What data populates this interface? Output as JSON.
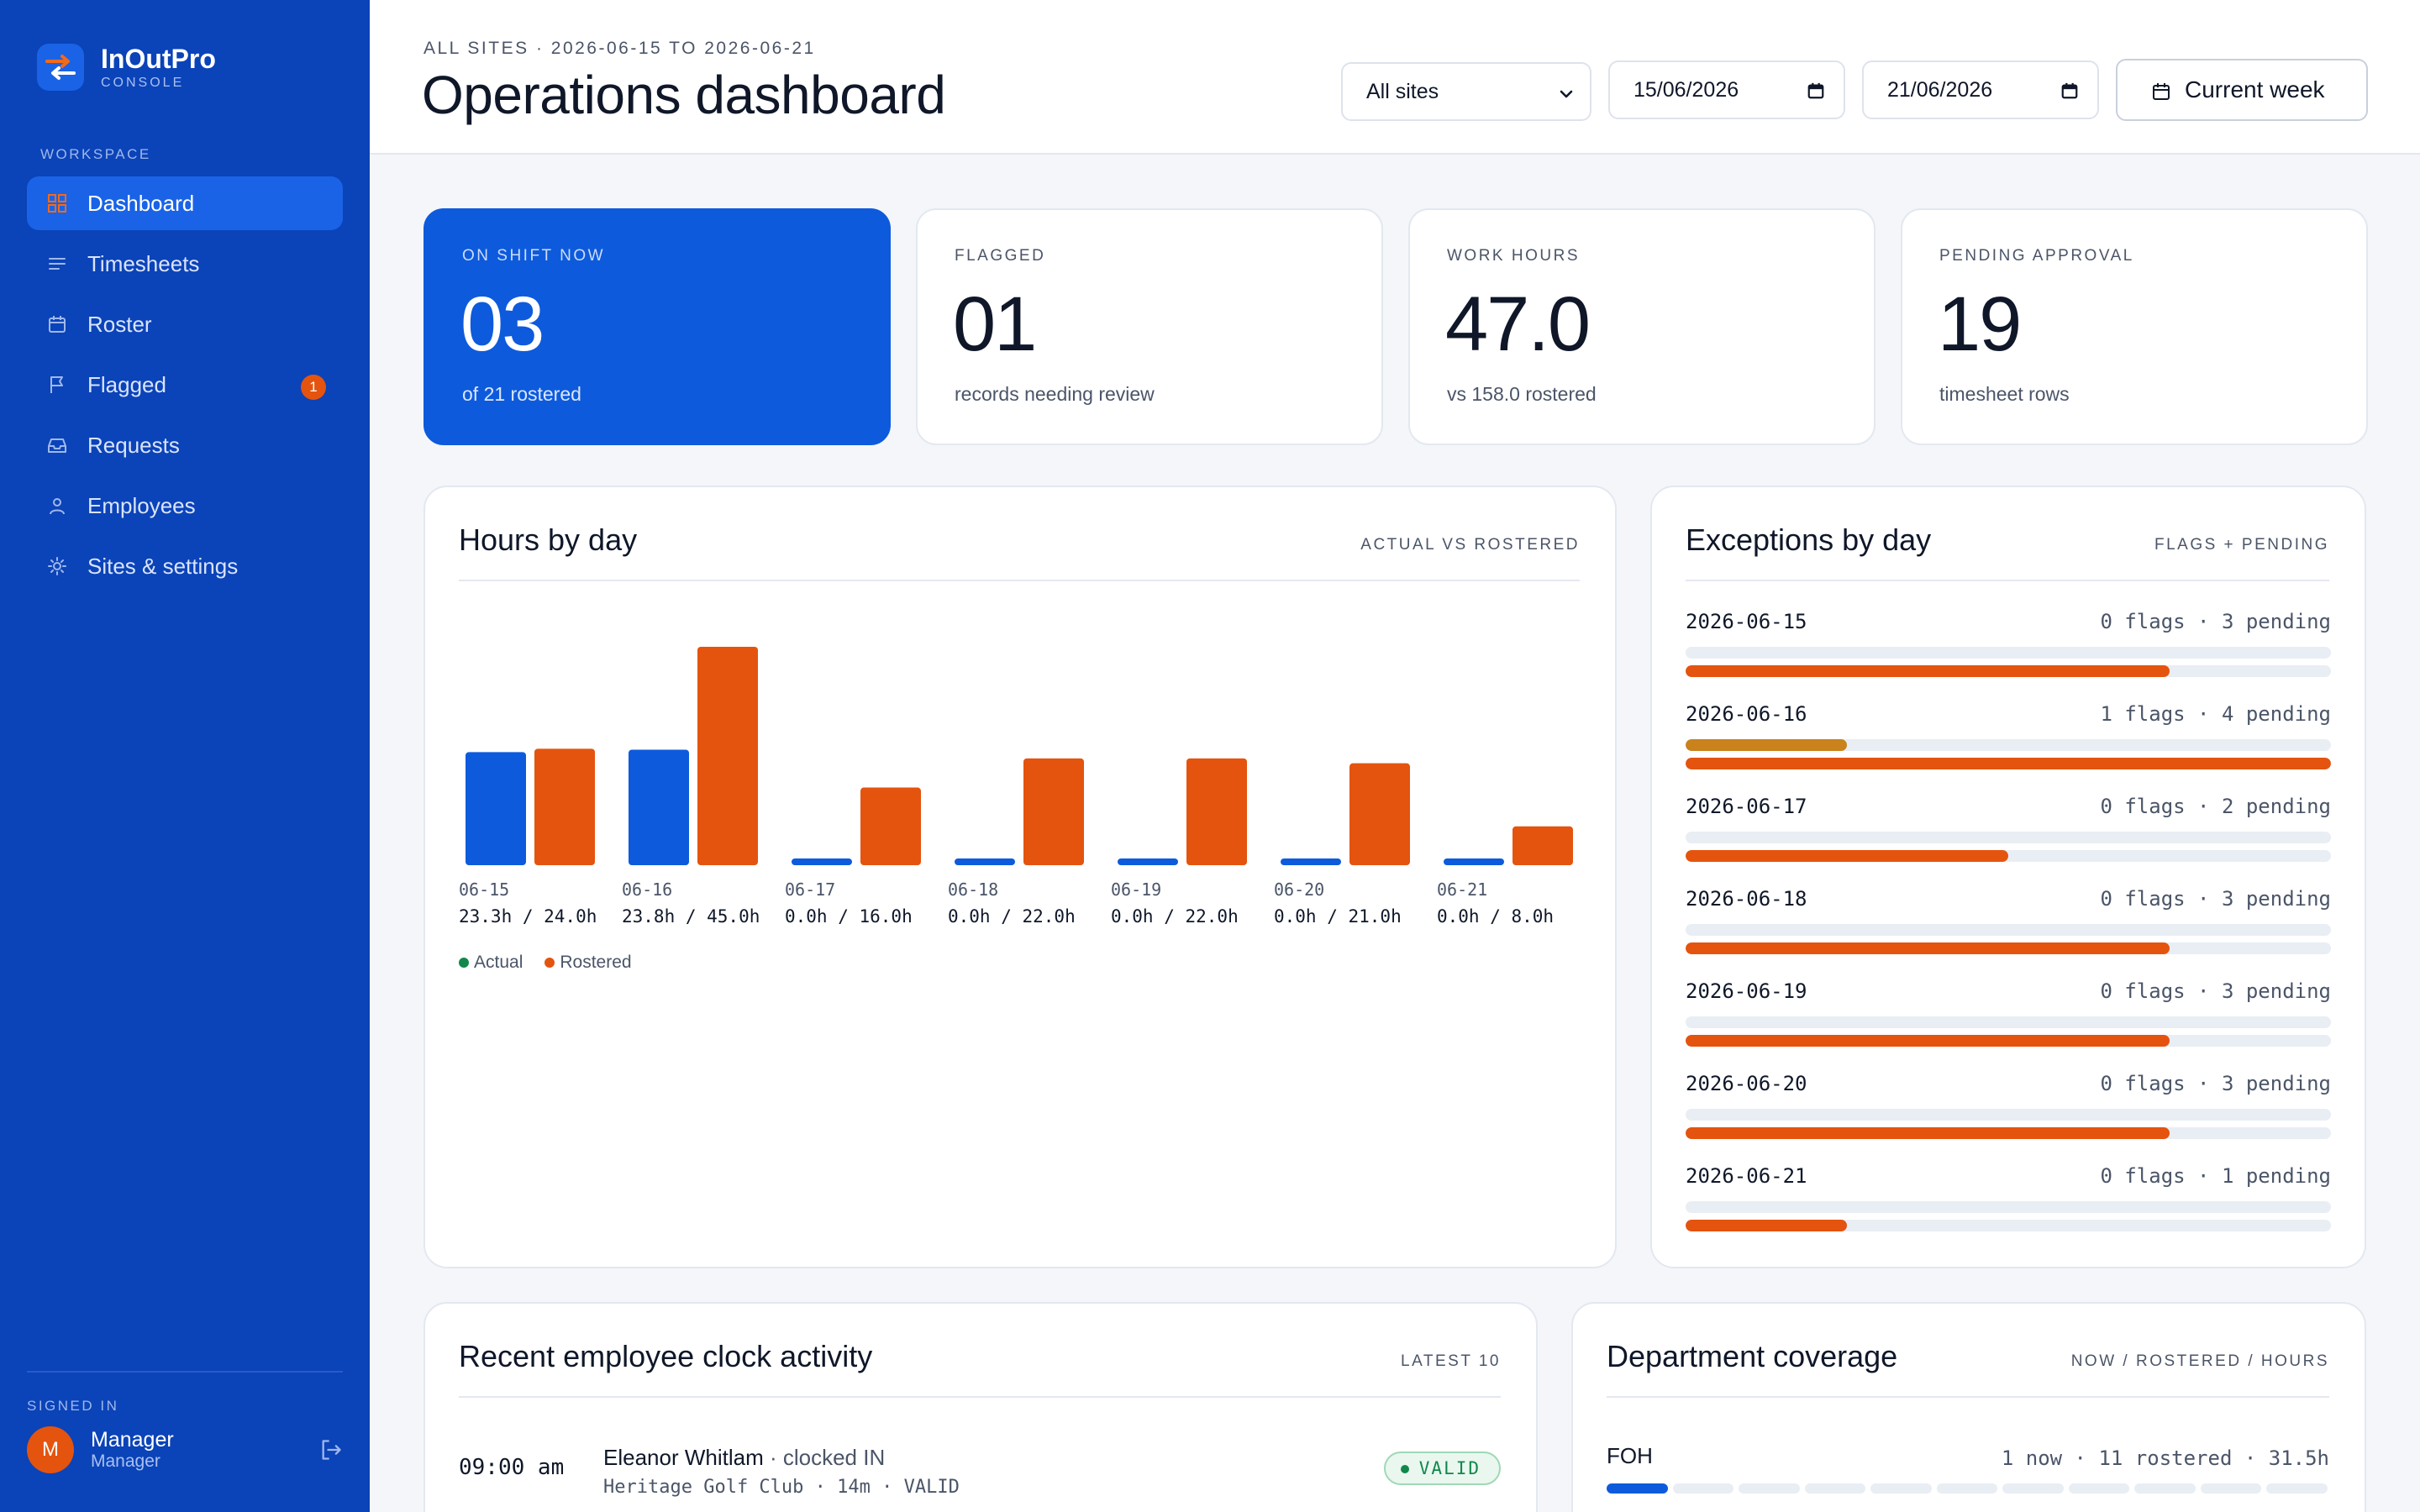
{
  "app": {
    "name": "InOutPro",
    "subtitle": "CONSOLE"
  },
  "sidebar": {
    "section_label": "WORKSPACE",
    "items": [
      {
        "label": "Dashboard",
        "icon": "grid-icon",
        "active": true
      },
      {
        "label": "Timesheets",
        "icon": "lines-icon"
      },
      {
        "label": "Roster",
        "icon": "calendar-icon"
      },
      {
        "label": "Flagged",
        "icon": "flag-icon",
        "badge": "1"
      },
      {
        "label": "Requests",
        "icon": "inbox-icon"
      },
      {
        "label": "Employees",
        "icon": "user-icon"
      },
      {
        "label": "Sites & settings",
        "icon": "sun-gear-icon"
      }
    ],
    "signed_in_label": "SIGNED IN",
    "user": {
      "initial": "M",
      "name": "Manager",
      "role": "Manager"
    }
  },
  "header": {
    "breadcrumb": "ALL SITES · 2026-06-15 TO 2026-06-21",
    "title": "Operations dashboard",
    "site_select": "All sites",
    "date_from": "15/06/2026",
    "date_to": "21/06/2026",
    "week_button": "Current week"
  },
  "stats": [
    {
      "label": "ON SHIFT NOW",
      "value": "03",
      "sub": "of 21 rostered"
    },
    {
      "label": "FLAGGED",
      "value": "01",
      "sub": "records needing review"
    },
    {
      "label": "WORK HOURS",
      "value": "47.0",
      "sub": "vs 158.0 rostered"
    },
    {
      "label": "PENDING APPROVAL",
      "value": "19",
      "sub": "timesheet rows"
    }
  ],
  "hours_panel": {
    "title": "Hours by day",
    "tag": "ACTUAL VS ROSTERED"
  },
  "colors": {
    "actual": "#0d5bdc",
    "rostered": "#e4540f",
    "flags": "#c9821c",
    "legend_actual_dot": "#12874b"
  },
  "chart_data": {
    "type": "bar",
    "title": "Hours by day",
    "categories": [
      "06-15",
      "06-16",
      "06-17",
      "06-18",
      "06-19",
      "06-20",
      "06-21"
    ],
    "value_labels": [
      "23.3h / 24.0h",
      "23.8h / 45.0h",
      "0.0h / 16.0h",
      "0.0h / 22.0h",
      "0.0h / 22.0h",
      "0.0h / 21.0h",
      "0.0h / 8.0h"
    ],
    "series": [
      {
        "name": "Actual",
        "values": [
          23.3,
          23.8,
          0.0,
          0.0,
          0.0,
          0.0,
          0.0
        ]
      },
      {
        "name": "Rostered",
        "values": [
          24.0,
          45.0,
          16.0,
          22.0,
          22.0,
          21.0,
          8.0
        ]
      }
    ],
    "xlabel": "",
    "ylabel": "",
    "grid": false,
    "legend": "bottom-left"
  },
  "exceptions_panel": {
    "title": "Exceptions by day",
    "tag": "FLAGS + PENDING",
    "max": 4,
    "rows": [
      {
        "date": "2026-06-15",
        "flags": 0,
        "pending": 3,
        "meta": "0 flags · 3 pending"
      },
      {
        "date": "2026-06-16",
        "flags": 1,
        "pending": 4,
        "meta": "1 flags · 4 pending"
      },
      {
        "date": "2026-06-17",
        "flags": 0,
        "pending": 2,
        "meta": "0 flags · 2 pending"
      },
      {
        "date": "2026-06-18",
        "flags": 0,
        "pending": 3,
        "meta": "0 flags · 3 pending"
      },
      {
        "date": "2026-06-19",
        "flags": 0,
        "pending": 3,
        "meta": "0 flags · 3 pending"
      },
      {
        "date": "2026-06-20",
        "flags": 0,
        "pending": 3,
        "meta": "0 flags · 3 pending"
      },
      {
        "date": "2026-06-21",
        "flags": 0,
        "pending": 1,
        "meta": "0 flags · 1 pending"
      }
    ]
  },
  "recent_panel": {
    "title": "Recent employee clock activity",
    "tag": "LATEST 10",
    "entries": [
      {
        "time": "09:00 am",
        "name": "Eleanor Whitlam",
        "action": "· clocked IN",
        "detail": "Heritage Golf Club · 14m · VALID",
        "status": "VALID"
      }
    ]
  },
  "coverage_panel": {
    "title": "Department coverage",
    "tag": "NOW / ROSTERED / HOURS",
    "departments": [
      {
        "name": "FOH",
        "meta": "1 now · 11 rostered · 31.5h",
        "now": 1,
        "rostered": 11
      }
    ]
  }
}
